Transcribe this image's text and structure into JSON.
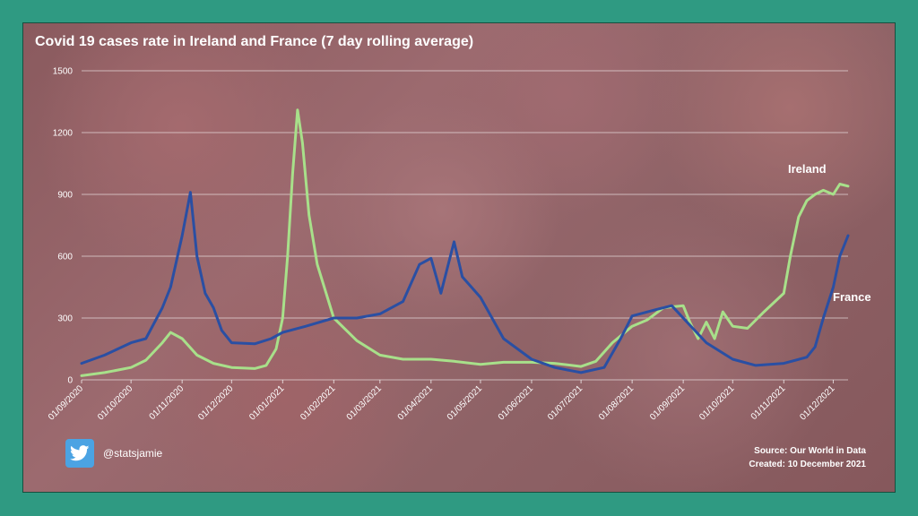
{
  "chart_data": {
    "type": "line",
    "title": "Covid 19 cases rate in Ireland and France (7 day rolling  average)",
    "xlabel": "",
    "ylabel": "",
    "ylim": [
      0,
      1500
    ],
    "yticks": [
      "1500",
      "1200",
      "900",
      "600",
      "300",
      "0"
    ],
    "ytick_values": [
      1500,
      1200,
      900,
      600,
      300,
      0
    ],
    "xlim": [
      "2020-09-01",
      "2021-12-10"
    ],
    "xticks": [
      "01/09/2020",
      "01/10/2020",
      "01/11/2020",
      "01/12/2020",
      "01/01/2021",
      "01/02/2021",
      "01/03/2021",
      "01/04/2021",
      "01/05/2021",
      "01/06/2021",
      "01/07/2021",
      "01/08/2021",
      "01/09/2021",
      "01/10/2021",
      "01/11/2021",
      "01/12/2021"
    ],
    "xtick_dates": [
      "2020-09-01",
      "2020-10-01",
      "2020-11-01",
      "2020-12-01",
      "2021-01-01",
      "2021-02-01",
      "2021-03-01",
      "2021-04-01",
      "2021-05-01",
      "2021-06-01",
      "2021-07-01",
      "2021-08-01",
      "2021-09-01",
      "2021-10-01",
      "2021-11-01",
      "2021-12-01"
    ],
    "grid": true,
    "legend": "inline labels at line ends",
    "series": [
      {
        "name": "Ireland",
        "color": "#a8e08a",
        "points": [
          [
            "2020-09-01",
            20
          ],
          [
            "2020-09-15",
            35
          ],
          [
            "2020-10-01",
            60
          ],
          [
            "2020-10-10",
            95
          ],
          [
            "2020-10-20",
            180
          ],
          [
            "2020-10-25",
            230
          ],
          [
            "2020-11-01",
            200
          ],
          [
            "2020-11-10",
            120
          ],
          [
            "2020-11-20",
            80
          ],
          [
            "2020-12-01",
            60
          ],
          [
            "2020-12-15",
            55
          ],
          [
            "2020-12-22",
            70
          ],
          [
            "2020-12-28",
            150
          ],
          [
            "2021-01-01",
            300
          ],
          [
            "2021-01-04",
            600
          ],
          [
            "2021-01-07",
            1000
          ],
          [
            "2021-01-10",
            1310
          ],
          [
            "2021-01-13",
            1150
          ],
          [
            "2021-01-17",
            800
          ],
          [
            "2021-01-22",
            560
          ],
          [
            "2021-02-01",
            300
          ],
          [
            "2021-02-15",
            190
          ],
          [
            "2021-03-01",
            120
          ],
          [
            "2021-03-15",
            100
          ],
          [
            "2021-04-01",
            100
          ],
          [
            "2021-04-15",
            90
          ],
          [
            "2021-05-01",
            75
          ],
          [
            "2021-05-15",
            85
          ],
          [
            "2021-06-01",
            85
          ],
          [
            "2021-06-15",
            80
          ],
          [
            "2021-07-01",
            65
          ],
          [
            "2021-07-10",
            90
          ],
          [
            "2021-07-20",
            180
          ],
          [
            "2021-08-01",
            260
          ],
          [
            "2021-08-10",
            290
          ],
          [
            "2021-08-20",
            350
          ],
          [
            "2021-09-01",
            360
          ],
          [
            "2021-09-05",
            280
          ],
          [
            "2021-09-10",
            200
          ],
          [
            "2021-09-15",
            280
          ],
          [
            "2021-09-20",
            200
          ],
          [
            "2021-09-25",
            330
          ],
          [
            "2021-10-01",
            260
          ],
          [
            "2021-10-10",
            250
          ],
          [
            "2021-10-20",
            330
          ],
          [
            "2021-11-01",
            420
          ],
          [
            "2021-11-05",
            600
          ],
          [
            "2021-11-10",
            790
          ],
          [
            "2021-11-15",
            870
          ],
          [
            "2021-11-20",
            900
          ],
          [
            "2021-11-25",
            920
          ],
          [
            "2021-12-01",
            900
          ],
          [
            "2021-12-05",
            950
          ],
          [
            "2021-12-10",
            940
          ]
        ]
      },
      {
        "name": "France",
        "color": "#2a4fa3",
        "points": [
          [
            "2020-09-01",
            80
          ],
          [
            "2020-09-15",
            120
          ],
          [
            "2020-10-01",
            180
          ],
          [
            "2020-10-10",
            200
          ],
          [
            "2020-10-20",
            350
          ],
          [
            "2020-10-25",
            450
          ],
          [
            "2020-11-01",
            700
          ],
          [
            "2020-11-06",
            910
          ],
          [
            "2020-11-10",
            600
          ],
          [
            "2020-11-15",
            420
          ],
          [
            "2020-11-20",
            350
          ],
          [
            "2020-11-25",
            240
          ],
          [
            "2020-12-01",
            180
          ],
          [
            "2020-12-15",
            175
          ],
          [
            "2020-12-25",
            200
          ],
          [
            "2021-01-01",
            230
          ],
          [
            "2021-01-15",
            260
          ],
          [
            "2021-02-01",
            300
          ],
          [
            "2021-02-15",
            300
          ],
          [
            "2021-03-01",
            320
          ],
          [
            "2021-03-15",
            380
          ],
          [
            "2021-03-25",
            560
          ],
          [
            "2021-04-01",
            590
          ],
          [
            "2021-04-07",
            420
          ],
          [
            "2021-04-15",
            670
          ],
          [
            "2021-04-20",
            500
          ],
          [
            "2021-05-01",
            400
          ],
          [
            "2021-05-15",
            200
          ],
          [
            "2021-06-01",
            100
          ],
          [
            "2021-06-15",
            60
          ],
          [
            "2021-07-01",
            35
          ],
          [
            "2021-07-15",
            60
          ],
          [
            "2021-07-25",
            200
          ],
          [
            "2021-08-01",
            310
          ],
          [
            "2021-08-15",
            340
          ],
          [
            "2021-08-25",
            360
          ],
          [
            "2021-09-01",
            300
          ],
          [
            "2021-09-15",
            180
          ],
          [
            "2021-10-01",
            100
          ],
          [
            "2021-10-15",
            70
          ],
          [
            "2021-11-01",
            80
          ],
          [
            "2021-11-15",
            110
          ],
          [
            "2021-11-20",
            160
          ],
          [
            "2021-11-25",
            300
          ],
          [
            "2021-12-01",
            450
          ],
          [
            "2021-12-05",
            600
          ],
          [
            "2021-12-10",
            700
          ]
        ]
      }
    ]
  },
  "handle": "@statsjamie",
  "source": "Source: Our World in Data",
  "created": "Created: 10 December 2021"
}
